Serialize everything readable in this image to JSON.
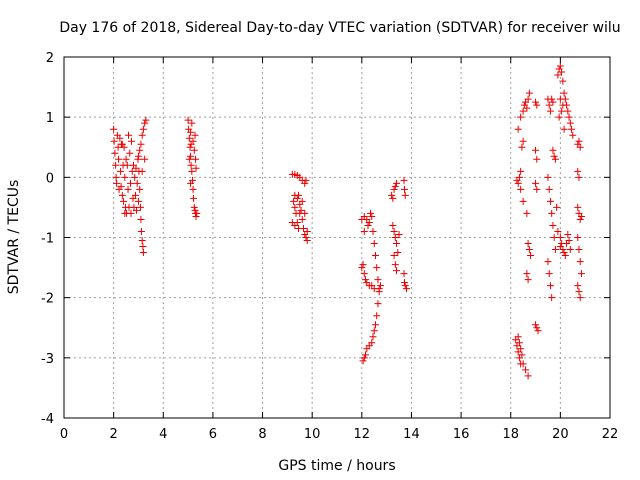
{
  "chart_data": {
    "type": "scatter",
    "title": "Day 176 of 2018, Sidereal Day-to-day VTEC variation (SDTVAR) for receiver wilu",
    "xlabel": "GPS time / hours",
    "ylabel": "SDTVAR / TECUs",
    "xlim": [
      0,
      22
    ],
    "ylim": [
      -4,
      2
    ],
    "x_ticks": [
      "0",
      "2",
      "4",
      "6",
      "8",
      "10",
      "12",
      "14",
      "16",
      "18",
      "20",
      "22"
    ],
    "y_ticks": [
      "-4",
      "-3",
      "-2",
      "-1",
      "0",
      "1",
      "2"
    ],
    "grid": true,
    "marker": "plus",
    "colors": {
      "series": "#ee0000",
      "grid": "#a0a0a0",
      "axes": "#000000"
    },
    "series": [
      {
        "name": "SDTVAR",
        "points": [
          [
            2.0,
            0.8
          ],
          [
            2.02,
            0.6
          ],
          [
            2.05,
            0.4
          ],
          [
            2.08,
            0.2
          ],
          [
            2.1,
            0.0
          ],
          [
            2.12,
            -0.1
          ],
          [
            2.15,
            0.7
          ],
          [
            2.18,
            0.5
          ],
          [
            2.2,
            0.3
          ],
          [
            2.22,
            -0.2
          ],
          [
            2.25,
            0.65
          ],
          [
            2.28,
            0.1
          ],
          [
            2.3,
            -0.15
          ],
          [
            2.32,
            0.55
          ],
          [
            2.35,
            -0.3
          ],
          [
            2.38,
            0.2
          ],
          [
            2.4,
            -0.4
          ],
          [
            2.42,
            0.5
          ],
          [
            2.45,
            0.0
          ],
          [
            2.48,
            -0.5
          ],
          [
            2.5,
            0.3
          ],
          [
            2.52,
            -0.6
          ],
          [
            2.55,
            0.2
          ],
          [
            2.58,
            -0.2
          ],
          [
            2.6,
            0.7
          ],
          [
            2.62,
            -0.5
          ],
          [
            2.65,
            0.4
          ],
          [
            2.68,
            -0.1
          ],
          [
            2.7,
            -0.6
          ],
          [
            2.72,
            0.6
          ],
          [
            2.75,
            0.1
          ],
          [
            2.78,
            -0.35
          ],
          [
            2.8,
            0.2
          ],
          [
            2.82,
            -0.5
          ],
          [
            2.85,
            0.0
          ],
          [
            2.88,
            -0.3
          ],
          [
            2.9,
            0.15
          ],
          [
            2.92,
            -0.55
          ],
          [
            2.95,
            -0.1
          ],
          [
            2.98,
            0.3
          ],
          [
            3.0,
            -0.4
          ],
          [
            3.02,
            0.1
          ],
          [
            3.05,
            -0.2
          ],
          [
            3.08,
            -0.5
          ],
          [
            3.1,
            -0.7
          ],
          [
            3.12,
            -0.9
          ],
          [
            3.15,
            -1.05
          ],
          [
            3.18,
            -1.15
          ],
          [
            3.2,
            -1.25
          ],
          [
            3.0,
            0.35
          ],
          [
            3.05,
            0.45
          ],
          [
            3.1,
            0.55
          ],
          [
            3.15,
            0.7
          ],
          [
            3.2,
            0.8
          ],
          [
            3.25,
            0.9
          ],
          [
            3.3,
            0.95
          ],
          [
            3.25,
            0.3
          ],
          [
            3.15,
            0.1
          ],
          [
            2.35,
            0.55
          ],
          [
            2.45,
            -0.6
          ],
          [
            5.0,
            0.95
          ],
          [
            5.02,
            0.8
          ],
          [
            5.05,
            0.65
          ],
          [
            5.08,
            0.5
          ],
          [
            5.1,
            0.35
          ],
          [
            5.12,
            0.2
          ],
          [
            5.15,
            0.1
          ],
          [
            5.18,
            -0.05
          ],
          [
            5.2,
            -0.2
          ],
          [
            5.22,
            -0.35
          ],
          [
            5.25,
            -0.5
          ],
          [
            5.28,
            -0.55
          ],
          [
            5.3,
            -0.6
          ],
          [
            5.32,
            -0.65
          ],
          [
            5.35,
            -0.6
          ],
          [
            5.1,
            0.75
          ],
          [
            5.2,
            0.6
          ],
          [
            5.25,
            0.45
          ],
          [
            5.3,
            0.3
          ],
          [
            5.32,
            0.15
          ],
          [
            5.15,
            0.9
          ],
          [
            5.12,
            0.55
          ],
          [
            5.28,
            0.7
          ],
          [
            5.05,
            0.3
          ],
          [
            5.1,
            -0.1
          ],
          [
            9.2,
            0.05
          ],
          [
            9.3,
            0.05
          ],
          [
            9.4,
            0.03
          ],
          [
            9.5,
            0.0
          ],
          [
            9.6,
            -0.05
          ],
          [
            9.7,
            -0.1
          ],
          [
            9.75,
            -0.05
          ],
          [
            9.25,
            -0.4
          ],
          [
            9.3,
            -0.5
          ],
          [
            9.35,
            -0.6
          ],
          [
            9.4,
            -0.75
          ],
          [
            9.45,
            -0.85
          ],
          [
            9.3,
            -0.3
          ],
          [
            9.4,
            -0.35
          ],
          [
            9.5,
            -0.45
          ],
          [
            9.55,
            -0.55
          ],
          [
            9.6,
            -0.7
          ],
          [
            9.65,
            -0.85
          ],
          [
            9.7,
            -0.95
          ],
          [
            9.75,
            -1.0
          ],
          [
            9.8,
            -1.05
          ],
          [
            9.6,
            -0.4
          ],
          [
            9.7,
            -0.6
          ],
          [
            9.2,
            -0.75
          ],
          [
            9.3,
            -0.8
          ],
          [
            9.5,
            -0.6
          ],
          [
            9.45,
            -0.3
          ],
          [
            9.8,
            -0.9
          ],
          [
            12.0,
            -0.7
          ],
          [
            12.1,
            -0.65
          ],
          [
            12.2,
            -0.7
          ],
          [
            12.3,
            -0.75
          ],
          [
            12.4,
            -0.65
          ],
          [
            12.45,
            -0.9
          ],
          [
            12.5,
            -1.1
          ],
          [
            12.55,
            -1.3
          ],
          [
            12.6,
            -1.5
          ],
          [
            12.65,
            -1.7
          ],
          [
            12.7,
            -1.85
          ],
          [
            12.75,
            -1.8
          ],
          [
            12.05,
            -1.45
          ],
          [
            12.1,
            -1.6
          ],
          [
            12.15,
            -1.7
          ],
          [
            12.2,
            -1.75
          ],
          [
            12.3,
            -1.8
          ],
          [
            12.4,
            -1.8
          ],
          [
            12.5,
            -1.85
          ],
          [
            12.1,
            -0.9
          ],
          [
            12.0,
            -1.5
          ],
          [
            12.05,
            -3.05
          ],
          [
            12.1,
            -3.0
          ],
          [
            12.15,
            -2.95
          ],
          [
            12.2,
            -2.85
          ],
          [
            12.3,
            -2.8
          ],
          [
            12.4,
            -2.75
          ],
          [
            12.45,
            -2.65
          ],
          [
            12.5,
            -2.55
          ],
          [
            12.55,
            -2.45
          ],
          [
            12.6,
            -2.3
          ],
          [
            12.65,
            -2.1
          ],
          [
            12.7,
            -1.9
          ],
          [
            12.25,
            -0.8
          ],
          [
            12.35,
            -0.6
          ],
          [
            13.2,
            -0.3
          ],
          [
            13.25,
            -0.35
          ],
          [
            13.3,
            -0.2
          ],
          [
            13.35,
            -0.15
          ],
          [
            13.4,
            -0.1
          ],
          [
            13.25,
            -0.8
          ],
          [
            13.3,
            -0.9
          ],
          [
            13.35,
            -1.0
          ],
          [
            13.4,
            -1.1
          ],
          [
            13.45,
            -1.25
          ],
          [
            13.3,
            -1.3
          ],
          [
            13.35,
            -1.45
          ],
          [
            13.4,
            -1.55
          ],
          [
            13.5,
            -0.95
          ],
          [
            13.7,
            -0.05
          ],
          [
            13.72,
            -0.2
          ],
          [
            13.75,
            -0.3
          ],
          [
            13.7,
            -1.6
          ],
          [
            13.72,
            -1.75
          ],
          [
            13.75,
            -1.8
          ],
          [
            13.8,
            -1.85
          ],
          [
            18.2,
            -2.7
          ],
          [
            18.25,
            -2.8
          ],
          [
            18.3,
            -2.9
          ],
          [
            18.35,
            -3.0
          ],
          [
            18.4,
            -3.1
          ],
          [
            18.45,
            -2.95
          ],
          [
            18.3,
            -2.65
          ],
          [
            18.35,
            -2.75
          ],
          [
            18.4,
            -2.85
          ],
          [
            18.5,
            -3.1
          ],
          [
            18.6,
            -3.2
          ],
          [
            18.7,
            -3.3
          ],
          [
            18.25,
            -0.05
          ],
          [
            18.3,
            -0.1
          ],
          [
            18.35,
            0.0
          ],
          [
            18.4,
            0.1
          ],
          [
            18.45,
            0.5
          ],
          [
            18.5,
            0.6
          ],
          [
            18.4,
            -0.2
          ],
          [
            18.5,
            -0.4
          ],
          [
            18.3,
            0.8
          ],
          [
            18.4,
            1.0
          ],
          [
            18.5,
            1.1
          ],
          [
            18.55,
            1.2
          ],
          [
            18.6,
            1.25
          ],
          [
            18.65,
            1.15
          ],
          [
            18.7,
            1.3
          ],
          [
            18.75,
            1.4
          ],
          [
            18.65,
            -0.6
          ],
          [
            18.7,
            -1.1
          ],
          [
            18.75,
            -1.2
          ],
          [
            18.8,
            -1.3
          ],
          [
            18.65,
            -1.6
          ],
          [
            18.7,
            -1.7
          ],
          [
            19.0,
            1.25
          ],
          [
            19.05,
            1.2
          ],
          [
            19.0,
            0.45
          ],
          [
            19.05,
            0.3
          ],
          [
            19.0,
            -0.1
          ],
          [
            19.05,
            -0.2
          ],
          [
            19.0,
            -2.45
          ],
          [
            19.05,
            -2.5
          ],
          [
            19.1,
            -2.55
          ],
          [
            19.5,
            1.3
          ],
          [
            19.55,
            1.2
          ],
          [
            19.6,
            1.1
          ],
          [
            19.65,
            1.3
          ],
          [
            19.7,
            1.25
          ],
          [
            19.5,
            0.0
          ],
          [
            19.55,
            -0.2
          ],
          [
            19.6,
            -0.4
          ],
          [
            19.65,
            -0.6
          ],
          [
            19.7,
            -0.8
          ],
          [
            19.75,
            -1.0
          ],
          [
            19.8,
            -1.2
          ],
          [
            19.85,
            -0.5
          ],
          [
            19.5,
            -1.4
          ],
          [
            19.55,
            -1.6
          ],
          [
            19.6,
            -1.8
          ],
          [
            19.65,
            -2.0
          ],
          [
            19.7,
            0.45
          ],
          [
            19.75,
            0.35
          ],
          [
            19.8,
            0.3
          ],
          [
            19.9,
            1.7
          ],
          [
            19.95,
            1.8
          ],
          [
            20.0,
            1.85
          ],
          [
            20.05,
            1.75
          ],
          [
            20.1,
            1.6
          ],
          [
            20.15,
            1.4
          ],
          [
            20.2,
            1.3
          ],
          [
            20.25,
            1.2
          ],
          [
            20.3,
            1.1
          ],
          [
            20.35,
            1.0
          ],
          [
            20.4,
            0.9
          ],
          [
            20.45,
            0.8
          ],
          [
            20.5,
            0.7
          ],
          [
            19.95,
            1.0
          ],
          [
            20.0,
            1.3
          ],
          [
            20.05,
            1.1
          ],
          [
            20.1,
            1.2
          ],
          [
            20.15,
            0.8
          ],
          [
            20.0,
            -1.0
          ],
          [
            20.05,
            -1.1
          ],
          [
            20.1,
            -1.2
          ],
          [
            20.15,
            -1.25
          ],
          [
            20.2,
            -1.3
          ],
          [
            20.25,
            -1.1
          ],
          [
            20.3,
            -0.95
          ],
          [
            20.35,
            -1.05
          ],
          [
            20.0,
            -1.15
          ],
          [
            19.9,
            -0.9
          ],
          [
            20.4,
            -1.2
          ],
          [
            20.7,
            0.55
          ],
          [
            20.75,
            0.6
          ],
          [
            20.8,
            0.5
          ],
          [
            20.7,
            0.1
          ],
          [
            20.75,
            0.0
          ],
          [
            20.7,
            -0.5
          ],
          [
            20.75,
            -0.6
          ],
          [
            20.8,
            -0.7
          ],
          [
            20.85,
            -0.65
          ],
          [
            20.7,
            -1.0
          ],
          [
            20.75,
            -1.2
          ],
          [
            20.8,
            -1.4
          ],
          [
            20.85,
            -1.6
          ],
          [
            20.7,
            -1.8
          ],
          [
            20.75,
            -1.9
          ],
          [
            20.8,
            -2.0
          ]
        ]
      }
    ]
  }
}
